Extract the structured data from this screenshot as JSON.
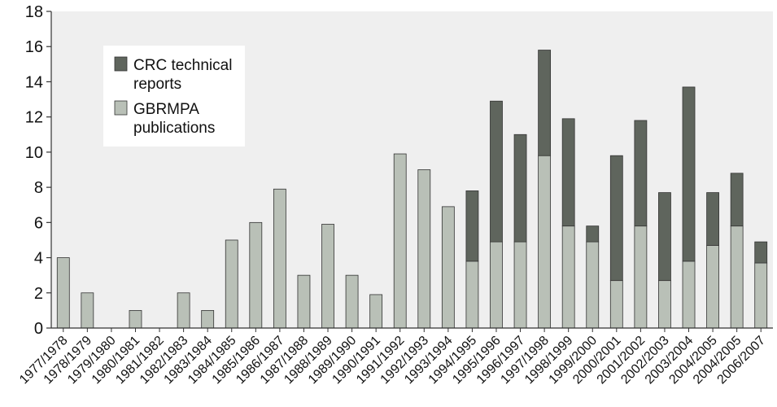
{
  "chart_data": {
    "type": "bar",
    "stacked": true,
    "categories": [
      "1977/1978",
      "1978/1979",
      "1979/1980",
      "1980/1981",
      "1981/1982",
      "1982/1983",
      "1983/1984",
      "1984/1985",
      "1985/1986",
      "1986/1987",
      "1987/1988",
      "1988/1989",
      "1989/1990",
      "1990/1991",
      "1991/1992",
      "1992/1993",
      "1993/1994",
      "1994/1995",
      "1995/1996",
      "1996/1997",
      "1997/1998",
      "1998/1999",
      "1999/2000",
      "2000/2001",
      "2001/2002",
      "2002/2003",
      "2003/2004",
      "2004/2005",
      "2004/2005",
      "2006/2007"
    ],
    "series": [
      {
        "name": "GBRMPA publications",
        "color": "#b9c0b7",
        "values": [
          4,
          2,
          0,
          1,
          0,
          2,
          1,
          5,
          6,
          7.9,
          3,
          5.9,
          3,
          1.9,
          9.9,
          9,
          6.9,
          3.8,
          4.9,
          4.9,
          9.8,
          5.8,
          4.9,
          2.7,
          5.8,
          2.7,
          3.8,
          4.7,
          5.8,
          3.7
        ]
      },
      {
        "name": "CRC technical reports",
        "color": "#5f655d",
        "values": [
          0,
          0,
          0,
          0,
          0,
          0,
          0,
          0,
          0,
          0,
          0,
          0,
          0,
          0,
          0,
          0,
          0,
          4,
          8,
          6.1,
          6,
          6.1,
          0.9,
          7.1,
          6,
          5,
          9.9,
          3,
          3,
          1.2
        ]
      }
    ],
    "ylim": [
      0,
      18
    ],
    "yticks": [
      0,
      2,
      4,
      6,
      8,
      10,
      12,
      14,
      16,
      18
    ],
    "legend": {
      "position": "top-left",
      "order": [
        "CRC technical reports",
        "GBRMPA publications"
      ]
    },
    "grid": false
  },
  "colors": {
    "plot_bg": "#efefef",
    "axis": "#333333",
    "bar_edge": "#333333"
  }
}
